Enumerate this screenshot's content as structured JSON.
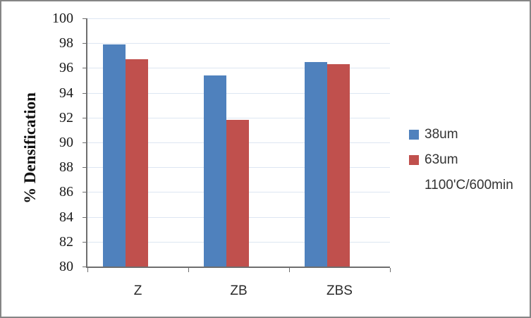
{
  "chart_data": {
    "type": "bar",
    "title": "",
    "ylabel": "% Densification",
    "xlabel": "",
    "categories": [
      "Z",
      "ZB",
      "ZBS"
    ],
    "series": [
      {
        "name": "38um",
        "color": "#4F81BD",
        "values": [
          97.9,
          95.4,
          96.5
        ]
      },
      {
        "name": "63um",
        "color": "#C0504D",
        "values": [
          96.7,
          91.8,
          96.3
        ]
      }
    ],
    "annotation": "1100'C/600min",
    "ylim": [
      80,
      100
    ],
    "ytick_step": 2,
    "yticks": [
      100,
      98,
      96,
      94,
      92,
      90,
      88,
      86,
      84,
      82,
      80
    ],
    "grid": true,
    "legend_position": "right",
    "colors": {
      "gridline": "#dde6f2",
      "axis": "#6e6e6e",
      "tick_text": "#1a1a1a",
      "category_text": "#2b2b2b",
      "legend_text": "#333333",
      "frame_border": "#858585",
      "background": "#ffffff"
    }
  }
}
